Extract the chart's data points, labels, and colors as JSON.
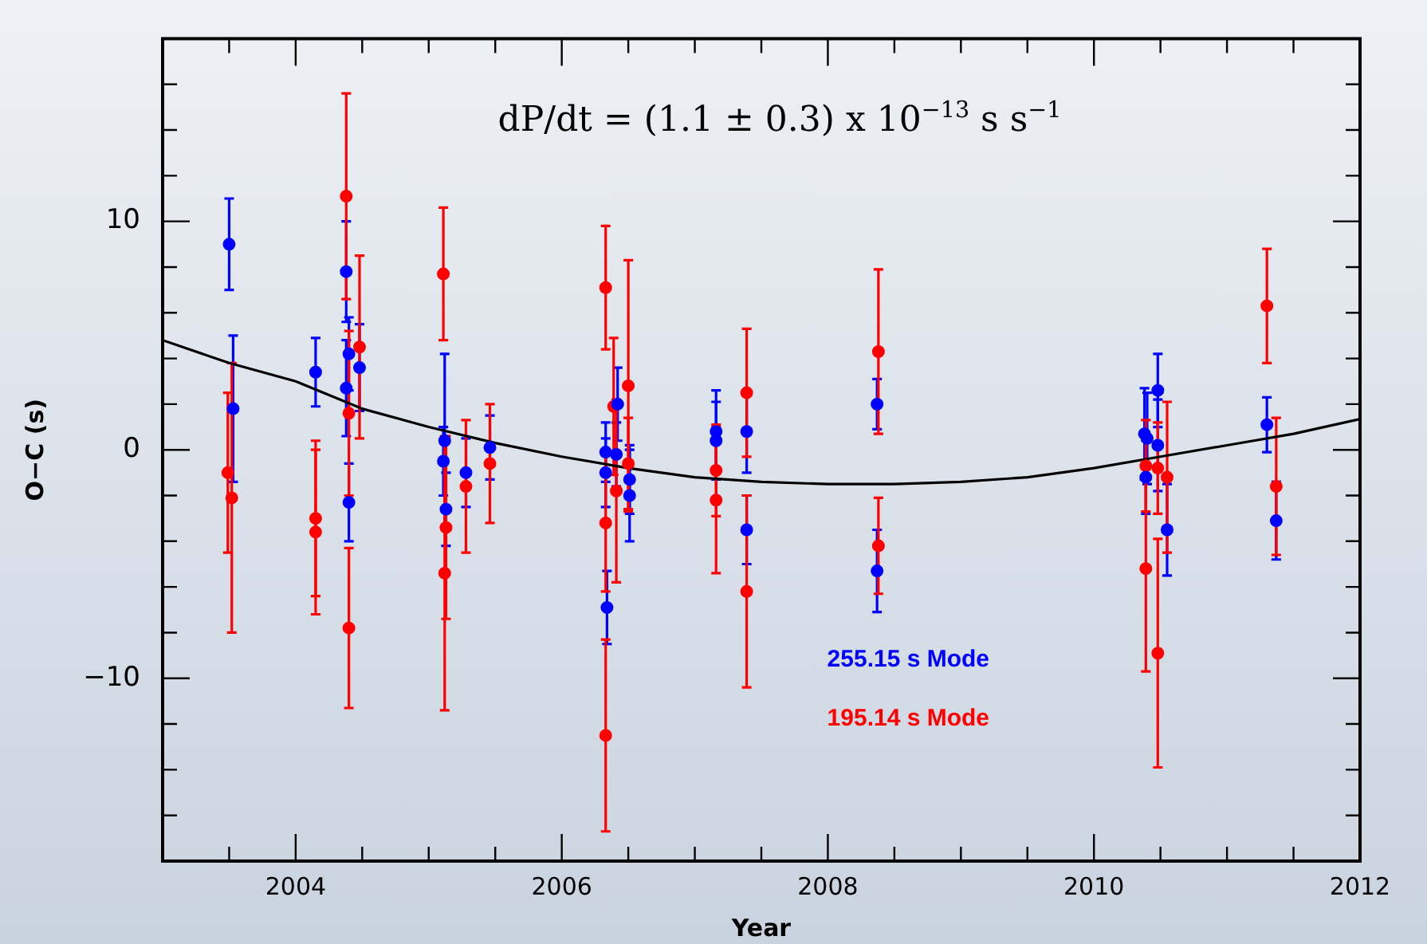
{
  "chart_data": {
    "type": "scatter",
    "xlabel": "Year",
    "ylabel": "O−C (s)",
    "annotations": [
      "dP/dt = (1.1 ± 0.3) x 10$^{−13}$ s s$^{−1}$"
    ],
    "xlim": [
      2003,
      2012
    ],
    "xticks": [
      {
        "value": 2003.5,
        "label": null
      },
      2004,
      {
        "value": 2004.5,
        "label": null
      },
      {
        "value": 2005,
        "label": null
      },
      {
        "value": 2005.5,
        "label": null
      },
      2006,
      {
        "value": 2006.5,
        "label": null
      },
      {
        "value": 2007,
        "label": null
      },
      {
        "value": 2007.5,
        "label": null
      },
      2008,
      {
        "value": 2008.5,
        "label": null
      },
      {
        "value": 2009,
        "label": null
      },
      {
        "value": 2009.5,
        "label": null
      },
      2010,
      {
        "value": 2010.5,
        "label": null
      },
      {
        "value": 2011,
        "label": null
      },
      {
        "value": 2011.5,
        "label": null
      },
      2012
    ],
    "ylim": [
      -18,
      18
    ],
    "yticks": [
      {
        "value": -16,
        "label": null
      },
      {
        "value": -14,
        "label": null
      },
      {
        "value": -12,
        "label": null
      },
      -10,
      {
        "value": -8,
        "label": null
      },
      {
        "value": -6,
        "label": null
      },
      {
        "value": -4,
        "label": null
      },
      {
        "value": -2,
        "label": null
      },
      0,
      {
        "value": 2,
        "label": null
      },
      {
        "value": 4,
        "label": null
      },
      {
        "value": 6,
        "label": null
      },
      {
        "value": 8,
        "label": null
      },
      10,
      {
        "value": 12,
        "label": null
      },
      {
        "value": 14,
        "label": null
      },
      {
        "value": 16,
        "label": null
      }
    ],
    "grid": false,
    "legend": "bottom",
    "marker": "circle",
    "series": [
      {
        "name": "255.15 s Mode",
        "type": "scatter",
        "color": "#0000ff",
        "x": [
          2003.5,
          2003.53,
          2004.15,
          2004.38,
          2004.4,
          2004.38,
          2004.4,
          2004.48,
          2005.12,
          2005.11,
          2005.13,
          2005.28,
          2005.46,
          2006.33,
          2006.33,
          2006.34,
          2006.42,
          2006.41,
          2006.51,
          2006.51,
          2007.16,
          2007.16,
          2007.39,
          2007.39,
          2008.37,
          2008.37,
          2010.38,
          2010.4,
          2010.39,
          2010.48,
          2010.48,
          2010.55,
          2011.3,
          2011.37
        ],
        "values": [
          9.0,
          1.8,
          3.4,
          7.8,
          4.2,
          2.7,
          -2.3,
          3.6,
          0.4,
          -0.5,
          -2.6,
          -1.0,
          0.1,
          -0.1,
          -1.0,
          -6.9,
          2.0,
          -0.2,
          -1.3,
          -2.0,
          0.8,
          0.4,
          0.8,
          -3.5,
          2.0,
          -5.3,
          0.7,
          0.5,
          -1.2,
          2.6,
          0.2,
          -3.5,
          1.1,
          -3.1
        ],
        "errors": [
          2.0,
          3.2,
          1.5,
          2.2,
          1.6,
          2.1,
          1.7,
          1.9,
          3.8,
          1.5,
          1.6,
          1.5,
          1.4,
          1.3,
          1.5,
          1.6,
          1.6,
          1.4,
          1.5,
          2.0,
          1.8,
          1.7,
          1.8,
          1.5,
          1.1,
          1.8,
          2.0,
          2.0,
          1.6,
          1.6,
          2.0,
          2.0,
          1.2,
          1.7
        ]
      },
      {
        "name": "195.14 s Mode",
        "type": "scatter",
        "color": "#ff0000",
        "x": [
          2003.49,
          2003.52,
          2004.15,
          2004.15,
          2004.38,
          2004.4,
          2004.4,
          2004.48,
          2005.11,
          2005.12,
          2005.13,
          2005.28,
          2005.46,
          2006.33,
          2006.33,
          2006.33,
          2006.39,
          2006.41,
          2006.5,
          2006.5,
          2007.16,
          2007.16,
          2007.39,
          2007.39,
          2008.38,
          2008.38,
          2010.39,
          2010.39,
          2010.48,
          2010.48,
          2010.55,
          2011.3,
          2011.37
        ],
        "values": [
          -1.0,
          -2.1,
          -3.0,
          -3.6,
          11.1,
          1.6,
          -7.8,
          4.5,
          7.7,
          -5.4,
          -3.4,
          -1.6,
          -0.6,
          7.1,
          -3.2,
          -12.5,
          1.9,
          -1.8,
          2.8,
          -0.6,
          -0.9,
          -2.2,
          2.5,
          -6.2,
          4.3,
          -4.2,
          -5.2,
          -0.7,
          -0.8,
          -8.9,
          -1.2,
          6.3,
          -1.6
        ],
        "errors": [
          3.5,
          5.9,
          3.4,
          3.6,
          4.5,
          3.6,
          3.5,
          4.0,
          2.9,
          6.0,
          4.0,
          2.9,
          2.6,
          2.7,
          3.0,
          4.2,
          3.0,
          4.0,
          5.5,
          2.0,
          2.0,
          3.2,
          2.8,
          4.2,
          3.6,
          2.1,
          4.5,
          2.0,
          2.0,
          5.0,
          3.3,
          2.5,
          3.0
        ]
      },
      {
        "type": "line",
        "color": "#000000",
        "marker": "none",
        "x": [
          2003,
          2003.5,
          2004,
          2004.5,
          2005,
          2005.5,
          2006,
          2006.5,
          2007,
          2007.5,
          2008,
          2008.5,
          2009,
          2009.5,
          2010,
          2010.5,
          2011,
          2011.5,
          2012
        ],
        "values": [
          4.8,
          3.8,
          3.0,
          1.8,
          1.0,
          0.3,
          -0.3,
          -0.8,
          -1.2,
          -1.4,
          -1.5,
          -1.5,
          -1.4,
          -1.2,
          -0.8,
          -0.3,
          0.2,
          0.7,
          1.35
        ]
      }
    ]
  }
}
